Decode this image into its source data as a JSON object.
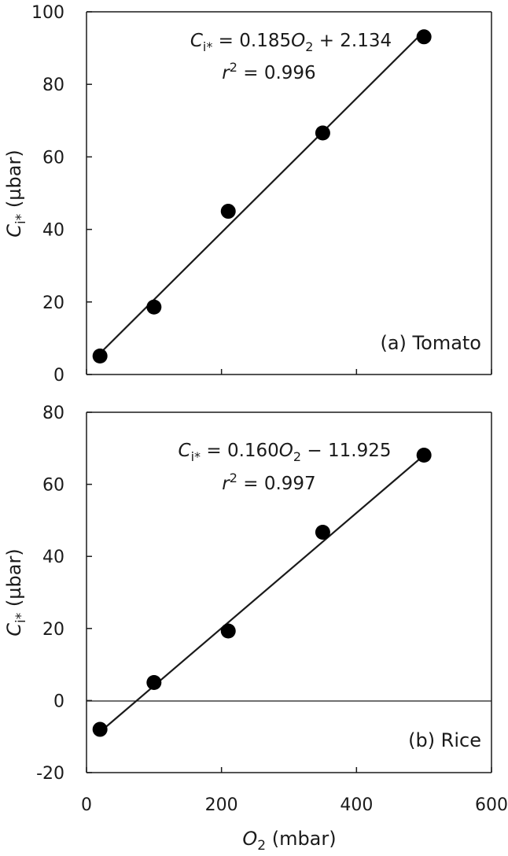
{
  "x_axis": {
    "label_var": "O",
    "label_sub": "2",
    "label_rest": " (mbar)",
    "ticks": [
      "0",
      "200",
      "400",
      "600"
    ],
    "tick_values": [
      0,
      200,
      400,
      600
    ]
  },
  "chart_data": [
    {
      "type": "scatter",
      "panel_label": "(a) Tomato",
      "ylabel_var": "C",
      "ylabel_sub": "i*",
      "ylabel_rest": " (µbar)",
      "xlim": [
        0,
        600
      ],
      "ylim": [
        0,
        100
      ],
      "y_ticks": [
        "0",
        "20",
        "40",
        "60",
        "80",
        "100"
      ],
      "y_tick_values": [
        0,
        20,
        40,
        60,
        80,
        100
      ],
      "grid": false,
      "points": [
        {
          "x": 20,
          "y": 5.1
        },
        {
          "x": 100,
          "y": 18.6
        },
        {
          "x": 210,
          "y": 45.0
        },
        {
          "x": 350,
          "y": 66.6
        },
        {
          "x": 500,
          "y": 93.1
        }
      ],
      "fit": {
        "slope": 0.185,
        "intercept": 2.134,
        "x_range": [
          20,
          500
        ]
      },
      "equation": {
        "lhs_var": "C",
        "lhs_sub": "i*",
        "mid": " = 0.185",
        "var": "O",
        "var_sub": "2",
        "tail": " + 2.134"
      },
      "r2": {
        "var": "r",
        "sup": "2",
        "tail": " = 0.996"
      }
    },
    {
      "type": "scatter",
      "panel_label": "(b) Rice",
      "ylabel_var": "C",
      "ylabel_sub": "i*",
      "ylabel_rest": " (µbar)",
      "xlim": [
        0,
        600
      ],
      "ylim": [
        -20,
        80
      ],
      "y_ticks": [
        "-20",
        "0",
        "20",
        "40",
        "60",
        "80"
      ],
      "y_tick_values": [
        -20,
        0,
        20,
        40,
        60,
        80
      ],
      "grid": false,
      "points": [
        {
          "x": 20,
          "y": -8.0
        },
        {
          "x": 100,
          "y": 5.0
        },
        {
          "x": 210,
          "y": 19.3
        },
        {
          "x": 350,
          "y": 46.7
        },
        {
          "x": 500,
          "y": 68.1
        }
      ],
      "fit": {
        "slope": 0.16,
        "intercept": -11.925,
        "x_range": [
          20,
          500
        ]
      },
      "equation": {
        "lhs_var": "C",
        "lhs_sub": "i*",
        "mid": " = 0.160",
        "var": "O",
        "var_sub": "2",
        "tail": " − 11.925"
      },
      "r2": {
        "var": "r",
        "sup": "2",
        "tail": " = 0.997"
      }
    }
  ]
}
